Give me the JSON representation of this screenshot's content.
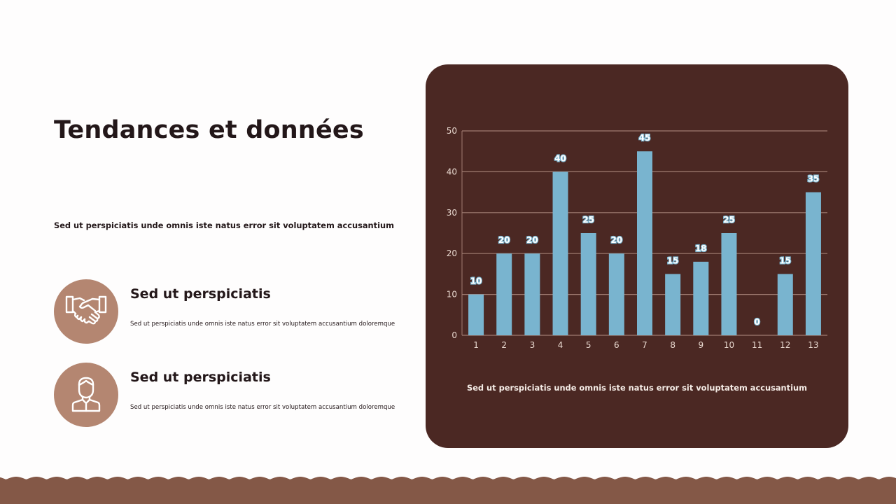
{
  "slide": {
    "title": "Tendances et données",
    "subtitle": "Sed ut perspiciatis unde omnis iste natus error sit voluptatem accusantium"
  },
  "features": [
    {
      "icon": "handshake-icon",
      "title": "Sed ut perspiciatis",
      "description": "Sed ut perspiciatis unde omnis iste natus error sit voluptatem accusantium doloremque"
    },
    {
      "icon": "person-icon",
      "title": "Sed ut perspiciatis",
      "description": "Sed ut perspiciatis unde omnis iste natus error sit voluptatem accusantium doloremque"
    }
  ],
  "chart_card": {
    "caption": "Sed ut perspiciatis unde omnis iste natus error sit voluptatem accusantium"
  },
  "colors": {
    "card_background": "#4b2823",
    "bar": "#79b4cf",
    "gridline": "#a07c72",
    "axis_text": "#e8d8cf",
    "icon_circle": "#b48671",
    "footer_wave": "#845847",
    "title_text": "#231719"
  },
  "chart_data": {
    "type": "bar",
    "title": "",
    "xlabel": "",
    "ylabel": "",
    "categories": [
      "1",
      "2",
      "3",
      "4",
      "5",
      "6",
      "7",
      "8",
      "9",
      "10",
      "11",
      "12",
      "13"
    ],
    "values": [
      10,
      20,
      20,
      40,
      25,
      20,
      45,
      15,
      18,
      25,
      0,
      15,
      35
    ],
    "data_labels": true,
    "ylim": [
      0,
      50
    ],
    "yticks": [
      0,
      10,
      20,
      30,
      40,
      50
    ],
    "grid": true,
    "legend": null
  }
}
